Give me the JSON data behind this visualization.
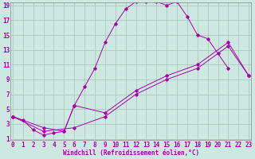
{
  "xlabel": "Windchill (Refroidissement éolien,°C)",
  "bg_color": "#cce8e0",
  "grid_color": "#aaccbb",
  "line_color": "#aa00aa",
  "curve1_x": [
    0,
    1,
    2,
    3,
    4,
    5,
    6,
    7,
    8,
    9,
    10,
    11,
    12,
    13,
    14,
    15,
    16,
    17,
    18,
    19,
    20,
    21
  ],
  "curve1_y": [
    4,
    3.5,
    2.2,
    1.5,
    1.8,
    2.0,
    5.5,
    8.0,
    10.5,
    14.0,
    16.5,
    18.5,
    19.5,
    19.5,
    19.5,
    19.0,
    19.5,
    17.5,
    15.0,
    14.5,
    12.5,
    10.5
  ],
  "curve2_x": [
    0,
    3,
    6,
    9,
    12,
    15,
    18,
    21,
    23
  ],
  "curve2_y": [
    4.0,
    2.0,
    2.5,
    4.0,
    7.0,
    9.0,
    10.5,
    13.5,
    9.5
  ],
  "curve3_x": [
    0,
    3,
    5,
    6,
    9,
    12,
    15,
    18,
    21,
    23
  ],
  "curve3_y": [
    4.0,
    2.5,
    2.0,
    5.5,
    4.5,
    7.5,
    9.5,
    11.0,
    14.0,
    9.5
  ],
  "xmin": 0,
  "xmax": 23,
  "ymin": 1,
  "ymax": 19,
  "yticks": [
    1,
    3,
    5,
    7,
    9,
    11,
    13,
    15,
    17,
    19
  ],
  "xticks": [
    0,
    1,
    2,
    3,
    4,
    5,
    6,
    7,
    8,
    9,
    10,
    11,
    12,
    13,
    14,
    15,
    16,
    17,
    18,
    19,
    20,
    21,
    22,
    23
  ],
  "tick_fontsize": 5.5,
  "label_fontsize": 5.5
}
